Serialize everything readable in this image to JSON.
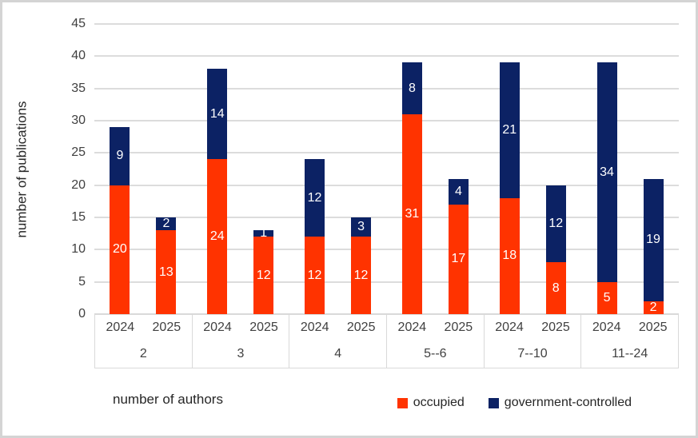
{
  "chart_data": {
    "type": "bar",
    "stacked": true,
    "title": "",
    "grid": true,
    "gridline_color": "#dcdcdc",
    "background": "#ffffff",
    "frame_border_color": "#d4d4d4",
    "y_axis": {
      "label": "number of publications",
      "min": 0,
      "max": 45,
      "tick_step": 5,
      "ticks": [
        "0",
        "5",
        "10",
        "15",
        "20",
        "25",
        "30",
        "35",
        "40",
        "45"
      ]
    },
    "x_axis": {
      "label": "number of authors"
    },
    "series": [
      {
        "name": "occupied",
        "color": "#ff3300"
      },
      {
        "name": "government-controlled",
        "color": "#0c2264"
      }
    ],
    "groups": [
      {
        "label": "2",
        "bars": [
          {
            "year": "2024",
            "segments": [
              20,
              9
            ]
          },
          {
            "year": "2025",
            "segments": [
              13,
              2
            ]
          }
        ]
      },
      {
        "label": "3",
        "bars": [
          {
            "year": "2024",
            "segments": [
              24,
              14
            ]
          },
          {
            "year": "2025",
            "segments": [
              12,
              1
            ]
          }
        ]
      },
      {
        "label": "4",
        "bars": [
          {
            "year": "2024",
            "segments": [
              12,
              12
            ]
          },
          {
            "year": "2025",
            "segments": [
              12,
              3
            ]
          }
        ]
      },
      {
        "label": "5--6",
        "bars": [
          {
            "year": "2024",
            "segments": [
              31,
              8
            ]
          },
          {
            "year": "2025",
            "segments": [
              17,
              4
            ]
          }
        ]
      },
      {
        "label": "7--10",
        "bars": [
          {
            "year": "2024",
            "segments": [
              18,
              21
            ]
          },
          {
            "year": "2025",
            "segments": [
              8,
              12
            ]
          }
        ]
      },
      {
        "label": "11--24",
        "bars": [
          {
            "year": "2024",
            "segments": [
              5,
              34
            ]
          },
          {
            "year": "2025",
            "segments": [
              2,
              19
            ]
          }
        ]
      }
    ],
    "legend": [
      {
        "label": "occupied",
        "color": "#ff3300"
      },
      {
        "label": "government-controlled",
        "color": "#0c2264"
      }
    ],
    "legend_position": "bottom-right"
  }
}
